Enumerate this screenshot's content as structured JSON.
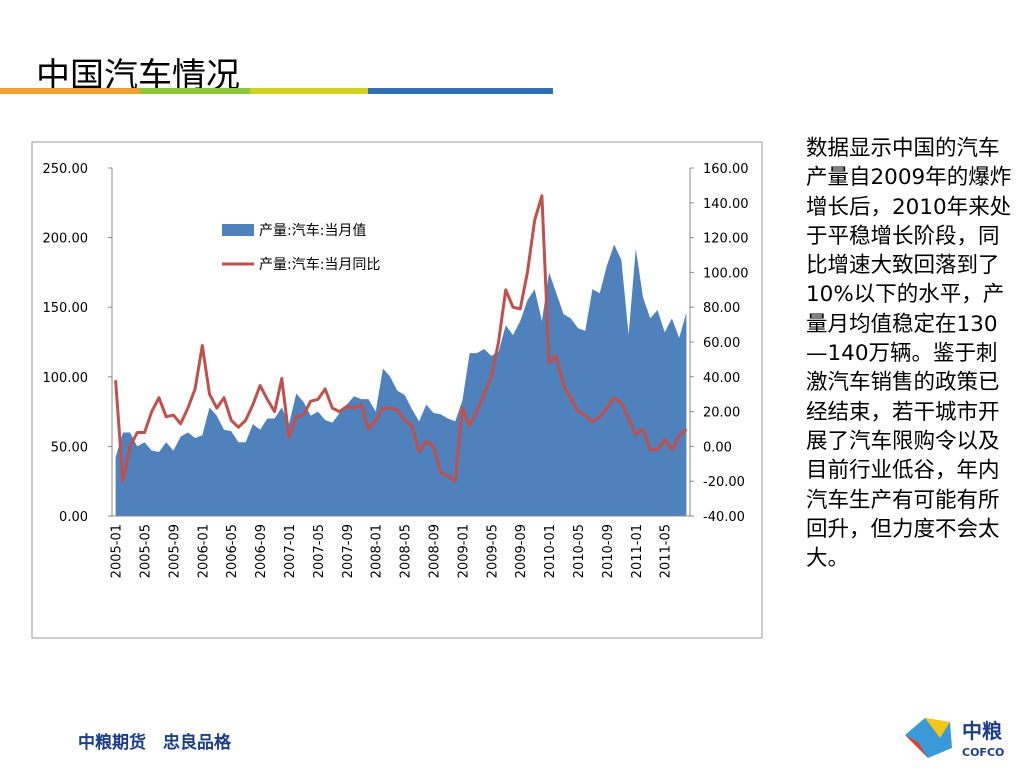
{
  "title": "中国汽车情况",
  "commentary": "数据显示中国的汽车产量自2009年的爆炸增长后，2010年来处于平稳增长阶段，同比增速大致回落到了10%以下的水平，产量月均值稳定在130—140万辆。鉴于刺激汽车销售的政策已经结束，若干城市开展了汽车限购令以及目前行业低谷，年内汽车生产有可能有所回升，但力度不会太大。",
  "footer": {
    "slogan": "中粮期货　忠良品格",
    "logo_cn": "中粮",
    "logo_en": "COFCO"
  },
  "chart_data": {
    "type": "area-line",
    "categories": [
      "2005-01",
      null,
      null,
      null,
      "2005-05",
      null,
      null,
      null,
      "2005-09",
      null,
      null,
      null,
      "2006-01",
      null,
      null,
      null,
      "2006-05",
      null,
      null,
      null,
      "2006-09",
      null,
      null,
      null,
      "2007-01",
      null,
      null,
      null,
      "2007-05",
      null,
      null,
      null,
      "2007-09",
      null,
      null,
      null,
      "2008-01",
      null,
      null,
      null,
      "2008-05",
      null,
      null,
      null,
      "2008-09",
      null,
      null,
      null,
      "2009-01",
      null,
      null,
      null,
      "2009-05",
      null,
      null,
      null,
      "2009-09",
      null,
      null,
      null,
      "2010-01",
      null,
      null,
      null,
      "2010-05",
      null,
      null,
      null,
      "2010-09",
      null,
      null,
      null,
      "2011-01",
      null,
      null,
      null,
      "2011-05",
      null,
      null,
      null
    ],
    "series": [
      {
        "name": "产量:汽车:当月值",
        "color": "#4f81bd",
        "kind": "area",
        "values": [
          42,
          60,
          60,
          50,
          53,
          47,
          46,
          53,
          47,
          57,
          60,
          56,
          58,
          78,
          72,
          62,
          61,
          53,
          53,
          66,
          62,
          70,
          70,
          78,
          66,
          88,
          82,
          72,
          75,
          69,
          67,
          74,
          80,
          86,
          84,
          84,
          75,
          106,
          100,
          90,
          87,
          77,
          68,
          80,
          74,
          73,
          70,
          68,
          83,
          117,
          117,
          120,
          115,
          118,
          137,
          130,
          140,
          155,
          163,
          140,
          175,
          160,
          145,
          142,
          135,
          133,
          163,
          160,
          180,
          195,
          184,
          130,
          192,
          157,
          142,
          148,
          132,
          142,
          128,
          146
        ]
      },
      {
        "name": "产量:汽车:当月同比",
        "color": "#c0504d",
        "kind": "line",
        "axis": "y2",
        "values": [
          38,
          -20,
          0,
          8,
          8,
          20,
          28,
          17,
          18,
          13,
          22,
          33,
          58,
          30,
          22,
          28,
          15,
          11,
          15,
          24,
          35,
          27,
          20,
          39,
          5,
          17,
          18,
          26,
          27,
          33,
          22,
          20,
          23,
          22,
          24,
          10,
          15,
          22,
          22,
          21,
          15,
          12,
          -3,
          3,
          0,
          -15,
          -17,
          -20,
          22,
          12,
          20,
          30,
          40,
          60,
          90,
          80,
          79,
          100,
          130,
          144,
          48,
          52,
          35,
          28,
          20,
          18,
          14,
          17,
          22,
          28,
          25,
          16,
          7,
          10,
          -2,
          -2,
          4,
          -2,
          6,
          10
        ]
      }
    ],
    "ylim": [
      0,
      250
    ],
    "yticks": [
      {
        "value": 0,
        "label": "0.00"
      },
      {
        "value": 50,
        "label": "50.00"
      },
      {
        "value": 100,
        "label": "100.00"
      },
      {
        "value": 150,
        "label": "150.00"
      },
      {
        "value": 200,
        "label": "200.00"
      },
      {
        "value": 250,
        "label": "250.00"
      }
    ],
    "y2lim": [
      -40,
      160
    ],
    "y2ticks": [
      {
        "value": -40,
        "label": "-40.00"
      },
      {
        "value": -20,
        "label": "-20.00"
      },
      {
        "value": 0,
        "label": "0.00"
      },
      {
        "value": 20,
        "label": "20.00"
      },
      {
        "value": 40,
        "label": "40.00"
      },
      {
        "value": 60,
        "label": "60.00"
      },
      {
        "value": 80,
        "label": "80.00"
      },
      {
        "value": 100,
        "label": "100.00"
      },
      {
        "value": 120,
        "label": "120.00"
      },
      {
        "value": 140,
        "label": "140.00"
      },
      {
        "value": 160,
        "label": "160.00"
      }
    ],
    "legend": "upper-left"
  }
}
